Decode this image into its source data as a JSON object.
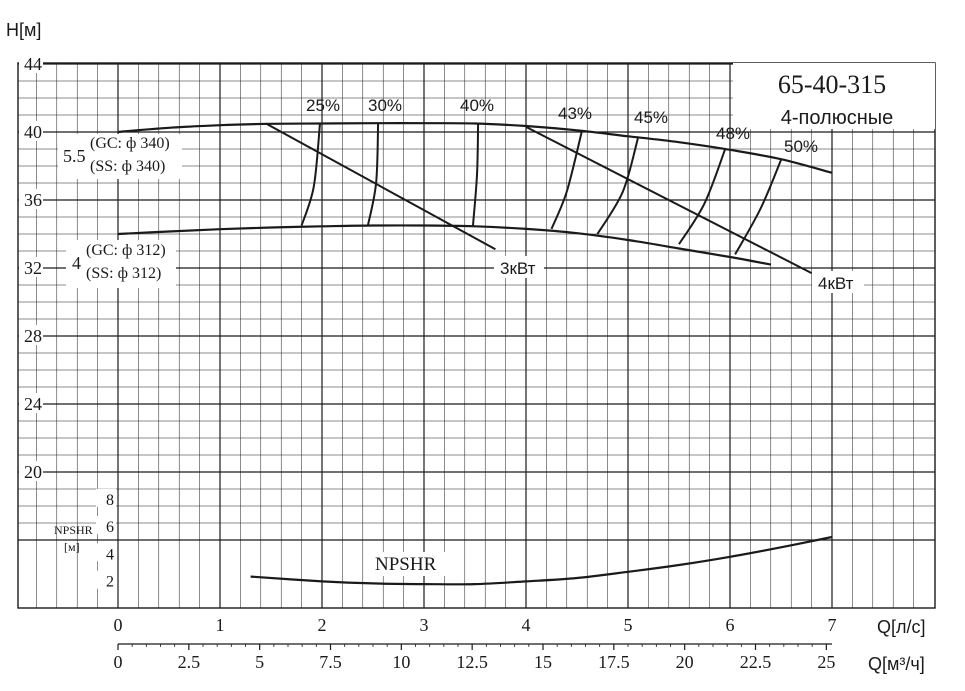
{
  "colors": {
    "background": "#ffffff",
    "ink": "#1a1a1a",
    "grid": "#1a1a1a"
  },
  "chart_data": {
    "type": "line",
    "title": "65-40-315",
    "subtitle": "4-полюсные",
    "ylabel": "H[м]",
    "xlabel_primary": "Q[л/с]",
    "xlabel_secondary": "Q[м³/ч]",
    "ylim": [
      16,
      44
    ],
    "xlim": [
      0,
      7
    ],
    "grid": true,
    "y_ticks": [
      "20",
      "24",
      "28",
      "32",
      "36",
      "40",
      "44"
    ],
    "x_ticks_primary": [
      "0",
      "1",
      "2",
      "3",
      "4",
      "5",
      "6",
      "7"
    ],
    "x_ticks_secondary": [
      "0",
      "2.5",
      "5",
      "7.5",
      "10",
      "12.5",
      "15",
      "17.5",
      "20",
      "22.5",
      "25"
    ],
    "npsh_axis": {
      "label": "NPSHR",
      "unit": "[м]",
      "ticks": [
        "2",
        "4",
        "6",
        "8"
      ],
      "ylim": [
        0,
        10
      ]
    },
    "series": [
      {
        "name": "(GC: ф 340)",
        "name_2": "(SS: ф 340)",
        "power_label": "5.5",
        "x": [
          0,
          0.5,
          1,
          1.5,
          2,
          2.5,
          3,
          3.5,
          4,
          4.5,
          5,
          5.5,
          6,
          6.5,
          7
        ],
        "y": [
          40.0,
          40.25,
          40.4,
          40.48,
          40.5,
          40.52,
          40.52,
          40.5,
          40.35,
          40.1,
          39.75,
          39.4,
          38.95,
          38.4,
          37.6
        ]
      },
      {
        "name": "(GC: ф 312)",
        "name_2": "(SS: ф 312)",
        "power_label": "4",
        "x": [
          0,
          0.5,
          1,
          1.5,
          2,
          2.5,
          3,
          3.5,
          4,
          4.5,
          5,
          5.5,
          6,
          6.4
        ],
        "y": [
          34.0,
          34.15,
          34.28,
          34.38,
          34.45,
          34.5,
          34.5,
          34.45,
          34.3,
          34.05,
          33.65,
          33.15,
          32.65,
          32.2
        ]
      }
    ],
    "efficiency_lines": [
      {
        "label": "25%",
        "points": [
          [
            1.8,
            34.5
          ],
          [
            1.92,
            36.8
          ],
          [
            1.98,
            40.5
          ]
        ]
      },
      {
        "label": "30%",
        "points": [
          [
            2.45,
            34.5
          ],
          [
            2.53,
            37.0
          ],
          [
            2.55,
            40.5
          ]
        ]
      },
      {
        "label": "40%",
        "points": [
          [
            3.48,
            34.5
          ],
          [
            3.52,
            37.5
          ],
          [
            3.53,
            40.5
          ]
        ]
      },
      {
        "label": "43%",
        "points": [
          [
            4.25,
            34.3
          ],
          [
            4.4,
            36.5
          ],
          [
            4.55,
            40.1
          ]
        ]
      },
      {
        "label": "45%",
        "points": [
          [
            4.7,
            34.0
          ],
          [
            4.95,
            36.5
          ],
          [
            5.1,
            39.7
          ]
        ]
      },
      {
        "label": "48%",
        "points": [
          [
            5.5,
            33.4
          ],
          [
            5.75,
            35.8
          ],
          [
            5.95,
            38.95
          ]
        ]
      },
      {
        "label": "50%",
        "points": [
          [
            6.05,
            32.8
          ],
          [
            6.3,
            35.5
          ],
          [
            6.5,
            38.35
          ]
        ]
      }
    ],
    "power_lines": [
      {
        "label": "3кВт",
        "from": [
          1.45,
          40.5
        ],
        "to": [
          3.7,
          33.1
        ]
      },
      {
        "label": "4кВт",
        "from": [
          4.0,
          40.3
        ],
        "to": [
          6.8,
          31.7
        ]
      }
    ],
    "npshr_curve": {
      "label": "NPSHR",
      "x": [
        1.3,
        2,
        2.5,
        3,
        3.5,
        4,
        4.5,
        5,
        5.5,
        6,
        6.5,
        7
      ],
      "y": [
        2.3,
        1.95,
        1.8,
        1.75,
        1.75,
        1.95,
        2.2,
        2.65,
        3.15,
        3.75,
        4.45,
        5.2
      ]
    }
  }
}
